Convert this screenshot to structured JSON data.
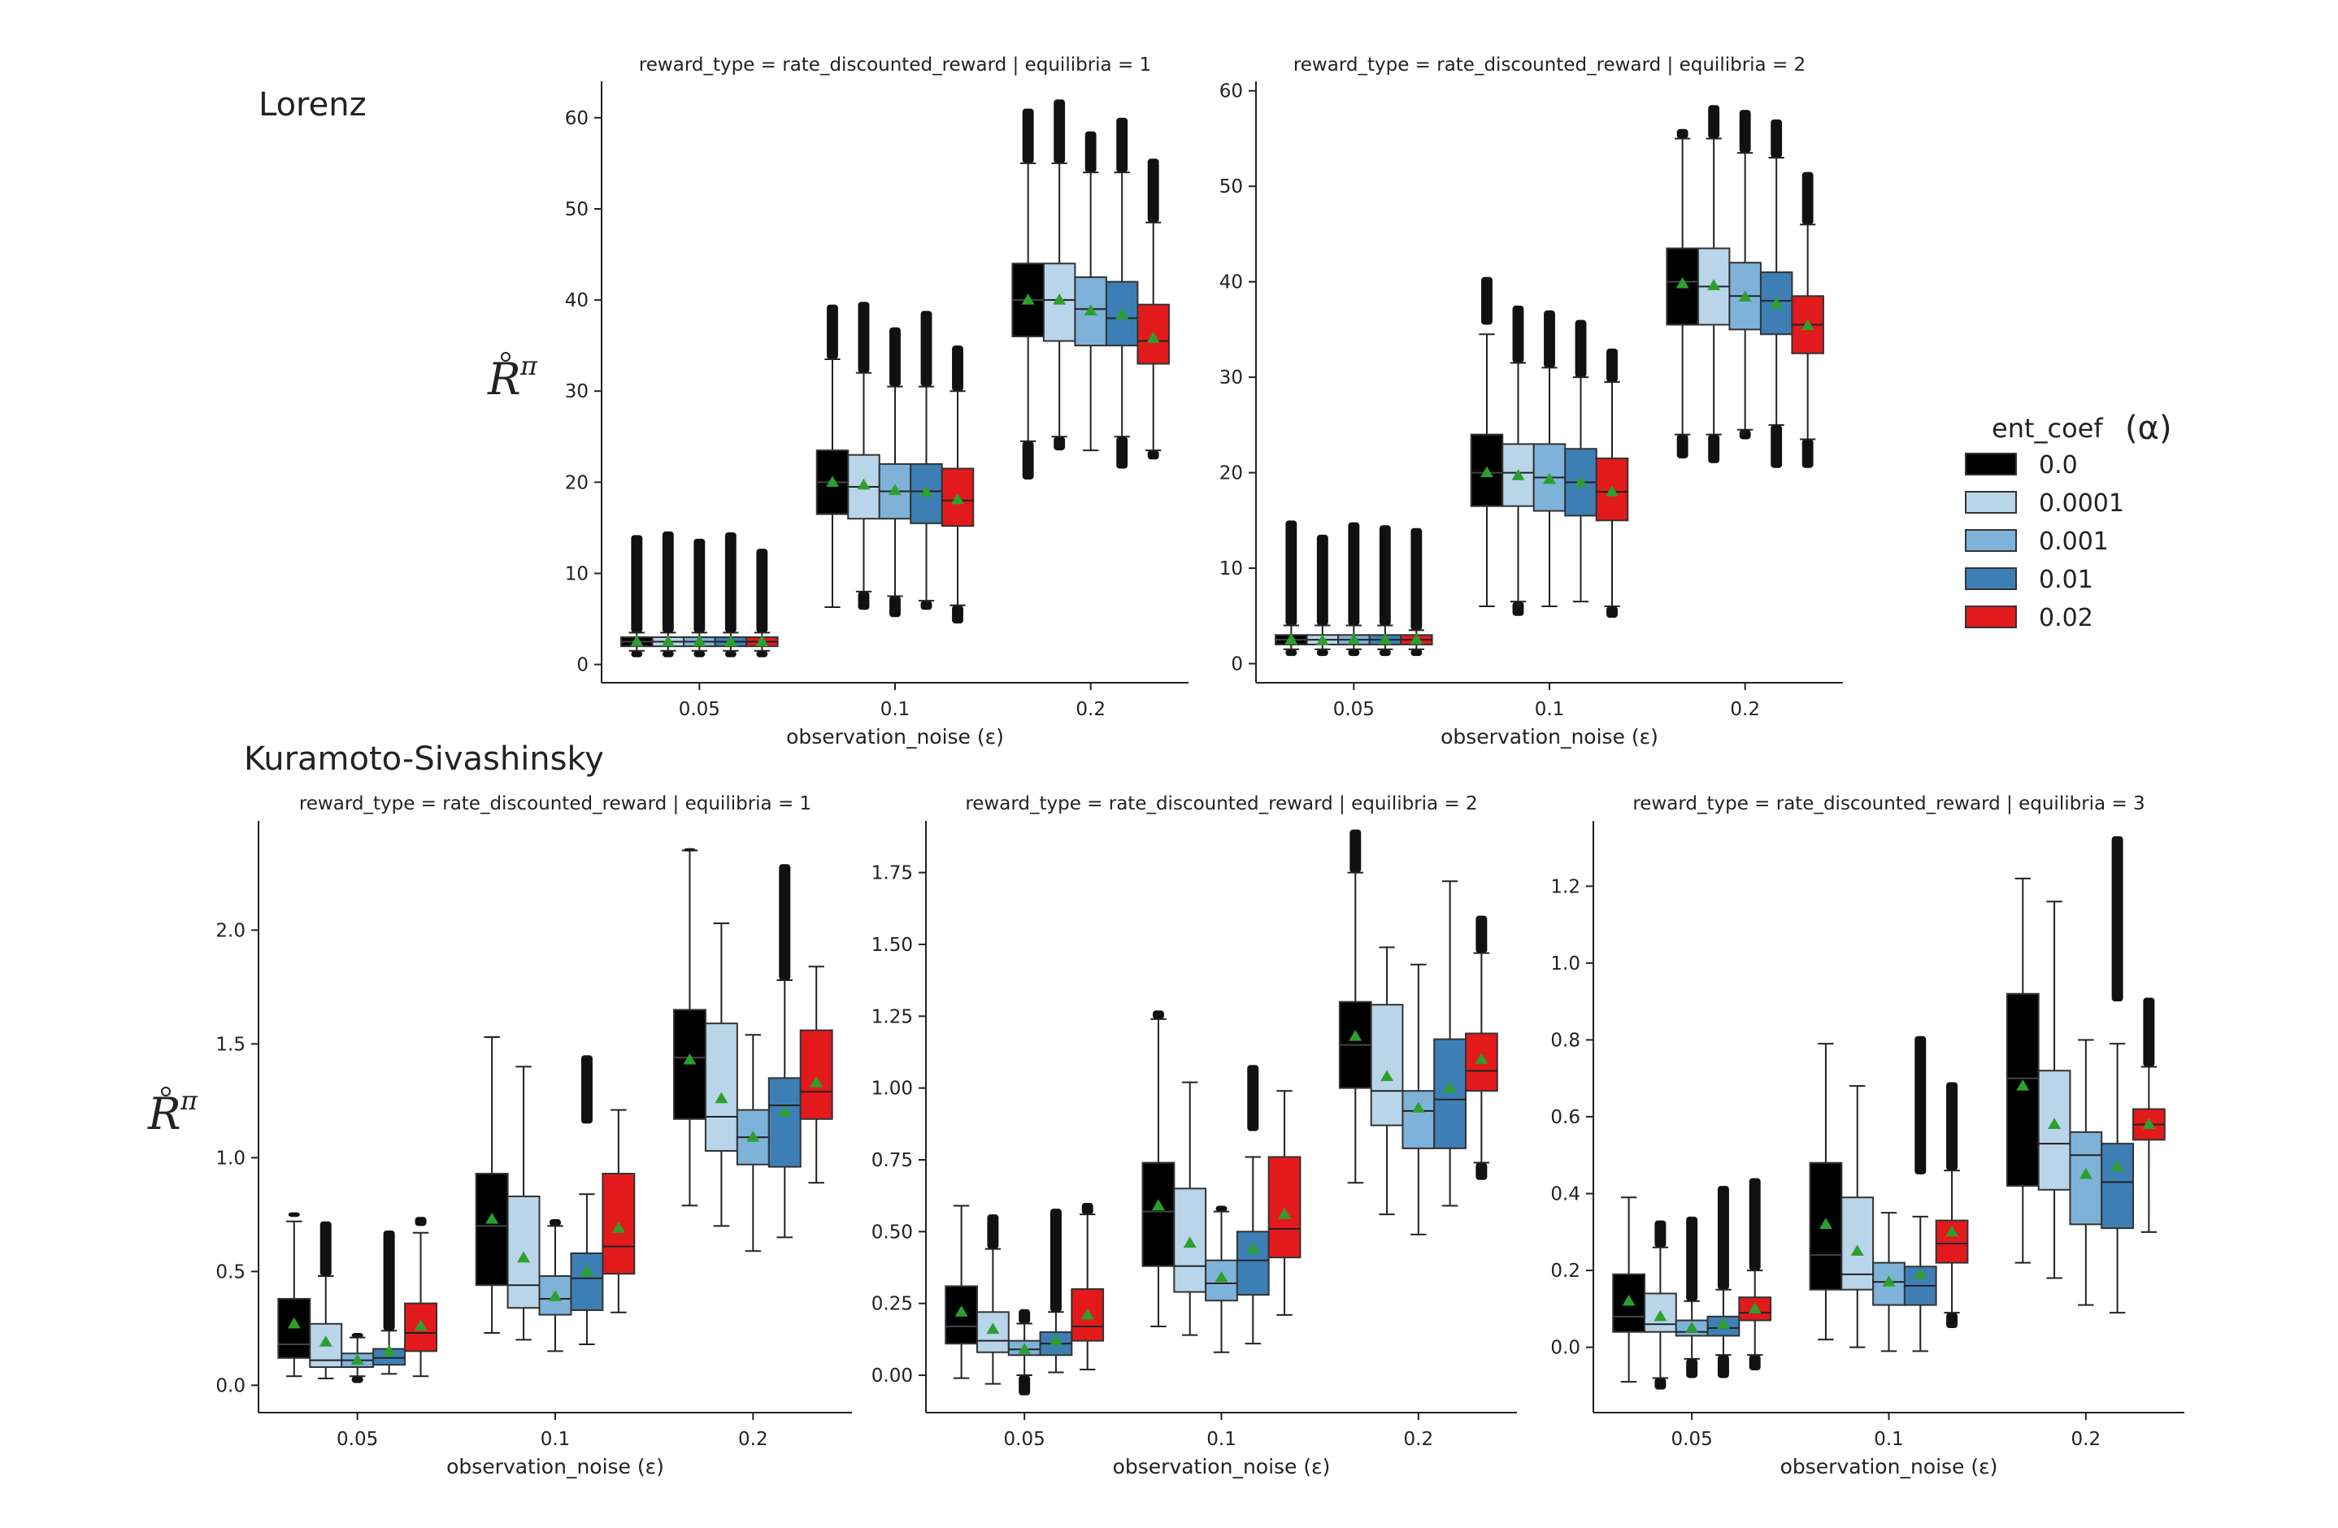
{
  "figure": {
    "section_titles": [
      "Lorenz",
      "Kuramoto-Sivashinsky"
    ],
    "y_symbol": "R",
    "y_superscript": "π",
    "xlabel": "observation_noise (ε)"
  },
  "legend": {
    "title": "ent_coef",
    "title_suffix": "(α)",
    "entries": [
      {
        "label": "0.0",
        "color": "#000000"
      },
      {
        "label": "0.0001",
        "color": "#b9d5ea"
      },
      {
        "label": "0.001",
        "color": "#7fb2d8"
      },
      {
        "label": "0.01",
        "color": "#3d7fb5"
      },
      {
        "label": "0.02",
        "color": "#e31a1c"
      }
    ]
  },
  "chart_data": [
    {
      "type": "box",
      "section": "Lorenz",
      "title": "reward_type = rate_discounted_reward | equilibria = 1",
      "xlabel": "observation_noise (ε)",
      "categories": [
        "0.05",
        "0.1",
        "0.2"
      ],
      "ylim": [
        -2,
        64
      ],
      "yticks": [
        0,
        10,
        20,
        30,
        40,
        50,
        60
      ],
      "ytick_labels": [
        "0",
        "10",
        "20",
        "30",
        "40",
        "50",
        "60"
      ],
      "boxes": [
        [
          [
            1.5,
            2.0,
            2.5,
            3.0,
            3.5,
            2.5,
            0.8,
            14.2
          ],
          [
            1.5,
            2.0,
            2.5,
            3.0,
            3.5,
            2.5,
            0.8,
            14.6
          ],
          [
            1.5,
            2.0,
            2.5,
            3.0,
            3.5,
            2.5,
            0.8,
            13.8
          ],
          [
            1.5,
            2.0,
            2.5,
            3.0,
            3.5,
            2.5,
            0.8,
            14.5
          ],
          [
            1.5,
            2.0,
            2.5,
            3.0,
            3.5,
            2.5,
            0.8,
            12.7
          ]
        ],
        [
          [
            6.3,
            16.5,
            20.0,
            23.5,
            33.5,
            20.0,
            33.5,
            39.5
          ],
          [
            8.0,
            16.0,
            19.5,
            23.0,
            32.0,
            19.7,
            6.0,
            39.8
          ],
          [
            7.5,
            16.0,
            19.0,
            22.0,
            30.5,
            19.1,
            5.2,
            37.0
          ],
          [
            7.0,
            15.5,
            19.0,
            22.0,
            30.5,
            18.9,
            6.0,
            38.8
          ],
          [
            6.5,
            15.2,
            18.0,
            21.5,
            30.0,
            18.1,
            4.5,
            35.0
          ]
        ],
        [
          [
            24.5,
            36.0,
            40.0,
            44.0,
            55.0,
            40.0,
            20.3,
            61.0
          ],
          [
            25.0,
            35.5,
            40.0,
            44.0,
            55.0,
            40.0,
            23.5,
            62.0
          ],
          [
            23.5,
            35.0,
            39.0,
            42.5,
            54.0,
            38.8,
            23.5,
            58.5
          ],
          [
            25.0,
            35.0,
            38.0,
            42.0,
            54.0,
            38.4,
            21.5,
            60.0
          ],
          [
            23.5,
            33.0,
            35.5,
            39.5,
            48.5,
            35.8,
            22.5,
            55.5
          ]
        ]
      ]
    },
    {
      "type": "box",
      "section": "Lorenz",
      "title": "reward_type = rate_discounted_reward | equilibria = 2",
      "xlabel": "observation_noise (ε)",
      "categories": [
        "0.05",
        "0.1",
        "0.2"
      ],
      "ylim": [
        -2,
        61
      ],
      "yticks": [
        0,
        10,
        20,
        30,
        40,
        50,
        60
      ],
      "ytick_labels": [
        "0",
        "10",
        "20",
        "30",
        "40",
        "50",
        "60"
      ],
      "boxes": [
        [
          [
            1.5,
            2.0,
            2.5,
            3.0,
            4.0,
            2.5,
            0.8,
            15.0
          ],
          [
            1.5,
            2.0,
            2.5,
            3.0,
            4.0,
            2.4,
            0.8,
            13.5
          ],
          [
            1.5,
            2.0,
            2.5,
            3.0,
            4.0,
            2.5,
            0.8,
            14.8
          ],
          [
            1.5,
            2.0,
            2.5,
            3.0,
            4.0,
            2.5,
            0.8,
            14.5
          ],
          [
            1.5,
            2.0,
            2.5,
            3.0,
            3.5,
            2.5,
            0.8,
            14.2
          ]
        ],
        [
          [
            6.0,
            16.5,
            20.0,
            24.0,
            34.5,
            20.0,
            35.5,
            40.5
          ],
          [
            6.5,
            16.5,
            20.0,
            23.0,
            31.5,
            19.7,
            5.0,
            37.5
          ],
          [
            6.0,
            16.0,
            19.5,
            23.0,
            31.0,
            19.3,
            6.0,
            37.0
          ],
          [
            6.5,
            15.5,
            19.0,
            22.5,
            30.0,
            19.0,
            6.5,
            36.0
          ],
          [
            6.0,
            15.0,
            18.0,
            21.5,
            29.5,
            18.0,
            4.8,
            33.0
          ]
        ],
        [
          [
            24.0,
            35.5,
            40.0,
            43.5,
            55.0,
            39.8,
            21.5,
            56.0
          ],
          [
            24.0,
            35.5,
            39.5,
            43.5,
            55.0,
            39.6,
            21.0,
            58.5
          ],
          [
            24.5,
            35.0,
            38.5,
            42.0,
            53.5,
            38.4,
            23.5,
            58.0
          ],
          [
            25.0,
            34.5,
            38.0,
            41.0,
            53.0,
            37.7,
            20.5,
            57.0
          ],
          [
            23.5,
            32.5,
            35.5,
            38.5,
            46.0,
            35.4,
            20.5,
            51.5
          ]
        ]
      ]
    },
    {
      "type": "box",
      "section": "Kuramoto-Sivashinsky",
      "title": "reward_type = rate_discounted_reward | equilibria = 1",
      "xlabel": "observation_noise (ε)",
      "categories": [
        "0.05",
        "0.1",
        "0.2"
      ],
      "ylim": [
        -0.12,
        2.48
      ],
      "yticks": [
        0.0,
        0.5,
        1.0,
        1.5,
        2.0
      ],
      "ytick_labels": [
        "0.0",
        "0.5",
        "1.0",
        "1.5",
        "2.0"
      ],
      "boxes": [
        [
          [
            0.04,
            0.12,
            0.18,
            0.38,
            0.72,
            0.27,
            0.74,
            0.76
          ],
          [
            0.03,
            0.08,
            0.11,
            0.27,
            0.48,
            0.19,
            0.48,
            0.72
          ],
          [
            0.04,
            0.08,
            0.11,
            0.14,
            0.21,
            0.11,
            0.01,
            0.23
          ],
          [
            0.05,
            0.09,
            0.12,
            0.16,
            0.24,
            0.15,
            0.24,
            0.68
          ],
          [
            0.04,
            0.15,
            0.23,
            0.36,
            0.67,
            0.26,
            0.7,
            0.74
          ]
        ],
        [
          [
            0.23,
            0.44,
            0.7,
            0.93,
            1.53,
            0.73,
            1.53,
            1.53
          ],
          [
            0.2,
            0.34,
            0.44,
            0.83,
            1.4,
            0.56,
            1.4,
            1.4
          ],
          [
            0.15,
            0.31,
            0.38,
            0.48,
            0.7,
            0.39,
            0.7,
            0.73
          ],
          [
            0.18,
            0.33,
            0.47,
            0.58,
            0.84,
            0.5,
            1.15,
            1.45
          ],
          [
            0.32,
            0.49,
            0.61,
            0.93,
            1.21,
            0.69,
            1.21,
            1.21
          ]
        ],
        [
          [
            0.79,
            1.17,
            1.44,
            1.65,
            2.35,
            1.43,
            2.35,
            2.36
          ],
          [
            0.7,
            1.03,
            1.18,
            1.59,
            2.03,
            1.26,
            2.03,
            2.03
          ],
          [
            0.59,
            0.97,
            1.09,
            1.21,
            1.54,
            1.09,
            1.54,
            1.54
          ],
          [
            0.65,
            0.96,
            1.23,
            1.35,
            1.78,
            1.2,
            1.6,
            2.29
          ],
          [
            0.89,
            1.17,
            1.29,
            1.56,
            1.84,
            1.33,
            1.84,
            1.84
          ]
        ]
      ]
    },
    {
      "type": "box",
      "section": "Kuramoto-Sivashinsky",
      "title": "reward_type = rate_discounted_reward | equilibria = 2",
      "xlabel": "observation_noise (ε)",
      "categories": [
        "0.05",
        "0.1",
        "0.2"
      ],
      "ylim": [
        -0.13,
        1.93
      ],
      "yticks": [
        0.0,
        0.25,
        0.5,
        0.75,
        1.0,
        1.25,
        1.5,
        1.75
      ],
      "ytick_labels": [
        "0.00",
        "0.25",
        "0.50",
        "0.75",
        "1.00",
        "1.25",
        "1.50",
        "1.75"
      ],
      "boxes": [
        [
          [
            -0.01,
            0.11,
            0.17,
            0.31,
            0.59,
            0.22,
            0.59,
            0.59
          ],
          [
            -0.03,
            0.08,
            0.12,
            0.22,
            0.44,
            0.16,
            0.44,
            0.56
          ],
          [
            0.0,
            0.07,
            0.09,
            0.12,
            0.18,
            0.09,
            -0.07,
            0.23
          ],
          [
            0.01,
            0.07,
            0.11,
            0.15,
            0.22,
            0.12,
            0.22,
            0.58
          ],
          [
            0.02,
            0.12,
            0.17,
            0.3,
            0.56,
            0.21,
            0.56,
            0.6
          ]
        ],
        [
          [
            0.17,
            0.38,
            0.57,
            0.74,
            1.24,
            0.59,
            1.24,
            1.27
          ],
          [
            0.14,
            0.29,
            0.38,
            0.65,
            1.02,
            0.46,
            1.02,
            1.02
          ],
          [
            0.08,
            0.26,
            0.32,
            0.4,
            0.57,
            0.34,
            0.57,
            0.59
          ],
          [
            0.11,
            0.28,
            0.4,
            0.5,
            0.76,
            0.44,
            0.85,
            1.08
          ],
          [
            0.21,
            0.41,
            0.51,
            0.76,
            0.99,
            0.56,
            0.99,
            0.99
          ]
        ],
        [
          [
            0.67,
            1.0,
            1.15,
            1.3,
            1.75,
            1.18,
            1.75,
            1.9
          ],
          [
            0.56,
            0.87,
            0.99,
            1.29,
            1.49,
            1.04,
            1.49,
            1.49
          ],
          [
            0.49,
            0.79,
            0.92,
            0.99,
            1.43,
            0.93,
            1.43,
            1.43
          ],
          [
            0.59,
            0.79,
            0.96,
            1.17,
            1.72,
            1.0,
            1.72,
            1.72
          ],
          [
            0.74,
            0.99,
            1.06,
            1.19,
            1.47,
            1.1,
            0.68,
            1.6
          ]
        ]
      ]
    },
    {
      "type": "box",
      "section": "Kuramoto-Sivashinsky",
      "title": "reward_type = rate_discounted_reward | equilibria = 3",
      "xlabel": "observation_noise (ε)",
      "categories": [
        "0.05",
        "0.1",
        "0.2"
      ],
      "ylim": [
        -0.17,
        1.37
      ],
      "yticks": [
        0.0,
        0.2,
        0.4,
        0.6,
        0.8,
        1.0,
        1.2
      ],
      "ytick_labels": [
        "0.0",
        "0.2",
        "0.4",
        "0.6",
        "0.8",
        "1.0",
        "1.2"
      ],
      "boxes": [
        [
          [
            -0.09,
            0.04,
            0.08,
            0.19,
            0.39,
            0.12,
            0.39,
            0.39
          ],
          [
            -0.08,
            0.04,
            0.06,
            0.14,
            0.26,
            0.08,
            -0.11,
            0.33
          ],
          [
            -0.03,
            0.03,
            0.04,
            0.07,
            0.12,
            0.05,
            -0.08,
            0.34
          ],
          [
            -0.02,
            0.03,
            0.05,
            0.08,
            0.15,
            0.06,
            -0.08,
            0.42
          ],
          [
            -0.02,
            0.07,
            0.09,
            0.13,
            0.2,
            0.1,
            -0.06,
            0.44
          ]
        ],
        [
          [
            0.02,
            0.15,
            0.24,
            0.48,
            0.79,
            0.32,
            0.79,
            0.79
          ],
          [
            0.0,
            0.15,
            0.19,
            0.39,
            0.68,
            0.25,
            0.68,
            0.68
          ],
          [
            -0.01,
            0.11,
            0.17,
            0.22,
            0.35,
            0.17,
            0.35,
            0.35
          ],
          [
            -0.01,
            0.11,
            0.16,
            0.21,
            0.34,
            0.19,
            0.45,
            0.81
          ],
          [
            0.09,
            0.22,
            0.27,
            0.33,
            0.46,
            0.3,
            0.05,
            0.69
          ]
        ],
        [
          [
            0.22,
            0.42,
            0.7,
            0.92,
            1.22,
            0.68,
            1.22,
            1.22
          ],
          [
            0.18,
            0.41,
            0.53,
            0.72,
            1.16,
            0.58,
            1.16,
            1.16
          ],
          [
            0.11,
            0.32,
            0.5,
            0.56,
            0.8,
            0.45,
            0.8,
            0.8
          ],
          [
            0.09,
            0.31,
            0.43,
            0.53,
            0.79,
            0.47,
            0.9,
            1.33
          ],
          [
            0.3,
            0.54,
            0.58,
            0.62,
            0.73,
            0.58,
            0.31,
            0.91
          ]
        ]
      ]
    }
  ]
}
